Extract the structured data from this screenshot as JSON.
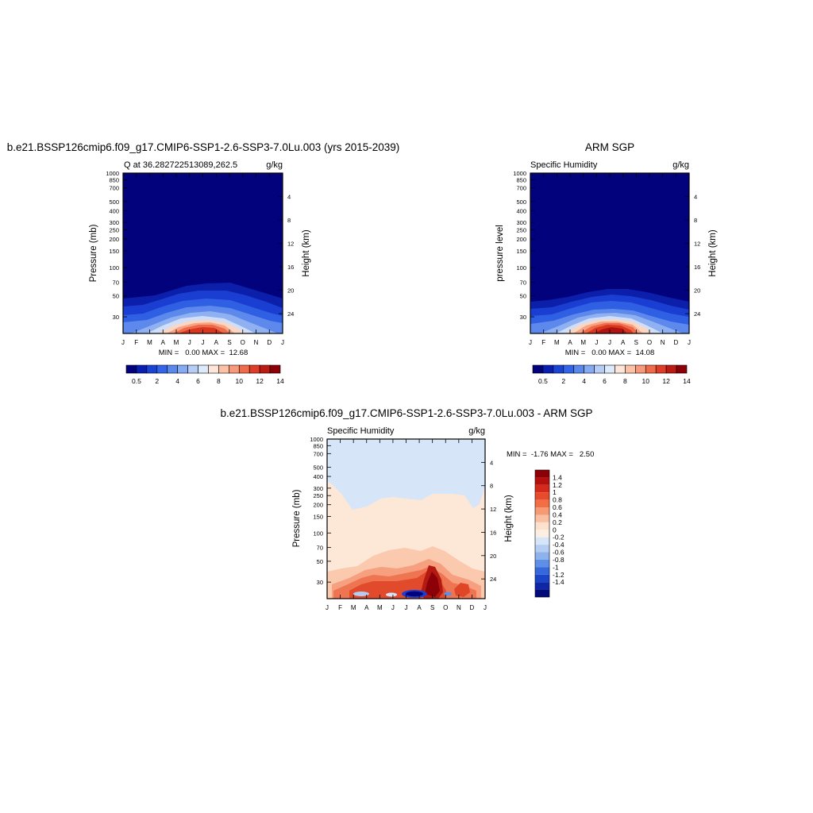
{
  "chart_data": [
    {
      "type": "heatmap",
      "title": "b.e21.BSSP126cmip6.f09_g17.CMIP6-SSP1-2.6-SSP3-7.0Lu.003 (yrs 2015-2039)",
      "subtitle_left": "Q at 36.282722513089,262.5",
      "subtitle_right": "g/kg",
      "ylabel": "Pressure (mb)",
      "ylabel_right": "Height (km)",
      "stats": "MIN =   0.00 MAX =  12.68",
      "x_ticks": [
        "J",
        "F",
        "M",
        "A",
        "M",
        "J",
        "J",
        "A",
        "S",
        "O",
        "N",
        "D",
        "J"
      ],
      "y_ticks": [
        30,
        50,
        70,
        100,
        150,
        200,
        250,
        300,
        400,
        500,
        700,
        850,
        1000
      ],
      "y_ticks_right": [
        24,
        20,
        16,
        12,
        8,
        4
      ],
      "min": 0.0,
      "max": 12.68,
      "colorbar_labels": [
        "0.5",
        "2",
        "4",
        "6",
        "8",
        "10",
        "12",
        "14"
      ],
      "colorbar_colors": [
        "#02027d",
        "#0a1eb0",
        "#1a44d6",
        "#3366e6",
        "#5b88ec",
        "#86abf2",
        "#b6cdf7",
        "#ddeafb",
        "#fde6d8",
        "#fbc2a8",
        "#f7997a",
        "#f06b4b",
        "#de3e28",
        "#bd1a14",
        "#8c0008"
      ]
    },
    {
      "type": "heatmap",
      "title": "ARM SGP",
      "subtitle_left": "Specific Humidity",
      "subtitle_right": "g/kg",
      "ylabel": "pressure level",
      "ylabel_right": "Height (km)",
      "stats": "MIN =   0.00 MAX =  14.08",
      "x_ticks": [
        "J",
        "F",
        "M",
        "A",
        "M",
        "J",
        "J",
        "A",
        "S",
        "O",
        "N",
        "D",
        "J"
      ],
      "y_ticks": [
        30,
        50,
        70,
        100,
        150,
        200,
        250,
        300,
        400,
        500,
        700,
        850,
        1000
      ],
      "y_ticks_right": [
        24,
        20,
        16,
        12,
        8,
        4
      ],
      "min": 0.0,
      "max": 14.08,
      "colorbar_labels": [
        "0.5",
        "2",
        "4",
        "6",
        "8",
        "10",
        "12",
        "14"
      ],
      "colorbar_colors": [
        "#02027d",
        "#0a1eb0",
        "#1a44d6",
        "#3366e6",
        "#5b88ec",
        "#86abf2",
        "#b6cdf7",
        "#ddeafb",
        "#fde6d8",
        "#fbc2a8",
        "#f7997a",
        "#f06b4b",
        "#de3e28",
        "#bd1a14",
        "#8c0008"
      ]
    },
    {
      "type": "heatmap",
      "title": "b.e21.BSSP126cmip6.f09_g17.CMIP6-SSP1-2.6-SSP3-7.0Lu.003 - ARM SGP",
      "subtitle_left": "Specific Humidity",
      "subtitle_right": "g/kg",
      "ylabel": "Pressure (mb)",
      "ylabel_right": "Height (km)",
      "stats": "MIN =  -1.76 MAX =   2.50",
      "x_ticks": [
        "J",
        "F",
        "M",
        "A",
        "M",
        "J",
        "J",
        "A",
        "S",
        "O",
        "N",
        "D",
        "J"
      ],
      "y_ticks": [
        30,
        50,
        70,
        100,
        150,
        200,
        250,
        300,
        400,
        500,
        700,
        850,
        1000
      ],
      "y_ticks_right": [
        24,
        20,
        16,
        12,
        8,
        4
      ],
      "min": -1.76,
      "max": 2.5,
      "colorbar_labels": [
        "1.4",
        "1.2",
        "1",
        "0.8",
        "0.6",
        "0.4",
        "0.2",
        "0",
        "-0.2",
        "-0.4",
        "-0.6",
        "-0.8",
        "-1",
        "-1.2",
        "-1.4"
      ],
      "colorbar_colors": [
        "#8c0008",
        "#b3100e",
        "#d42a1c",
        "#e84b2c",
        "#f26f45",
        "#f69a74",
        "#f9bfa0",
        "#fde1cf",
        "#fdeee2",
        "#d6e6f8",
        "#b4cdf2",
        "#8db2ec",
        "#5f8ee6",
        "#3568dc",
        "#1a45c8",
        "#0d27a6",
        "#020b78"
      ]
    }
  ]
}
